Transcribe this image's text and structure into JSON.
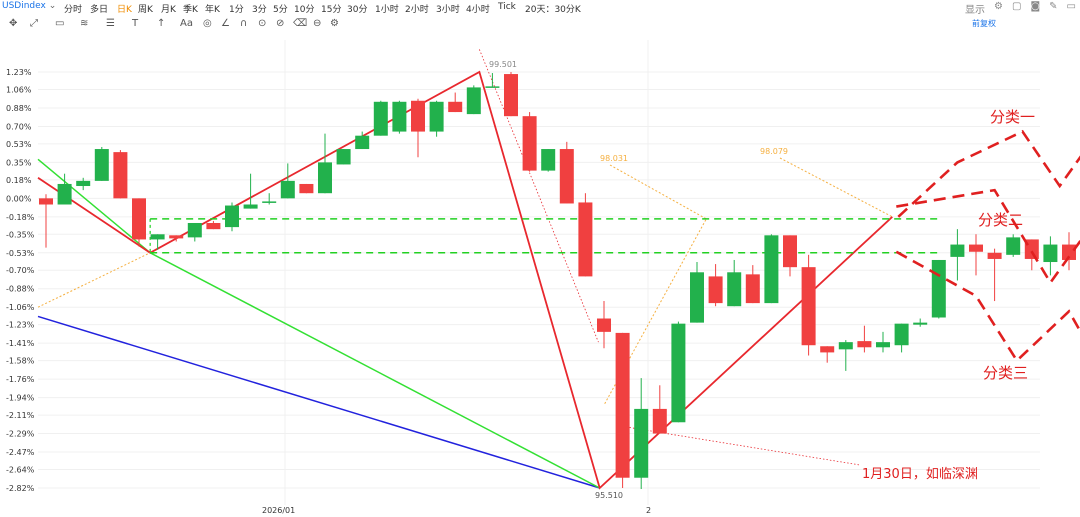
{
  "topbar": {
    "symbol": "USDindex",
    "timeframes": [
      "分时",
      "多日",
      "日K",
      "周K",
      "月K",
      "季K",
      "年K",
      "1分",
      "3分",
      "5分",
      "10分",
      "15分",
      "30分",
      "1小时",
      "2小时",
      "3小时",
      "4小时",
      "Tick",
      "20天：30分K"
    ],
    "active_timeframe": "日K",
    "display_label": "显示"
  },
  "toolbar": {
    "icons": [
      "move-icon",
      "trend-line-icon",
      "rect-icon",
      "fib-icon",
      "list-icon",
      "text-tool-icon",
      "arrow-icon",
      "font-icon",
      "palette-icon",
      "pencil-icon",
      "magnet-icon",
      "lock-icon",
      "eye-icon",
      "trash-icon",
      "link-icon",
      "settings-icon"
    ],
    "fuquan_label": "前复权"
  },
  "chart_data": {
    "type": "candlestick",
    "y_ticks": [
      "1.23%",
      "1.06%",
      "0.88%",
      "0.70%",
      "0.53%",
      "0.35%",
      "0.18%",
      "0.00%",
      "-0.18%",
      "-0.35%",
      "-0.53%",
      "-0.70%",
      "-0.88%",
      "-1.06%",
      "-1.23%",
      "-1.41%",
      "-1.58%",
      "-1.76%",
      "-1.94%",
      "-2.11%",
      "-2.29%",
      "-2.47%",
      "-2.64%",
      "-2.82%"
    ],
    "x_ticks": [
      "2026/01",
      "2"
    ],
    "ylim": [
      -2.9,
      1.3
    ],
    "candles": [
      {
        "o": 0.0,
        "h": 0.04,
        "l": -0.48,
        "c": -0.06
      },
      {
        "o": -0.06,
        "h": 0.24,
        "l": -0.06,
        "c": 0.14
      },
      {
        "o": 0.12,
        "h": 0.2,
        "l": 0.08,
        "c": 0.17
      },
      {
        "o": 0.17,
        "h": 0.5,
        "l": 0.17,
        "c": 0.48
      },
      {
        "o": 0.45,
        "h": 0.47,
        "l": 0.0,
        "c": 0.0
      },
      {
        "o": 0.0,
        "h": 0.0,
        "l": -0.47,
        "c": -0.4
      },
      {
        "o": -0.4,
        "h": -0.35,
        "l": -0.5,
        "c": -0.35
      },
      {
        "o": -0.36,
        "h": -0.36,
        "l": -0.42,
        "c": -0.39
      },
      {
        "o": -0.38,
        "h": -0.24,
        "l": -0.42,
        "c": -0.24
      },
      {
        "o": -0.24,
        "h": -0.22,
        "l": -0.3,
        "c": -0.3
      },
      {
        "o": -0.28,
        "h": -0.04,
        "l": -0.32,
        "c": -0.07
      },
      {
        "o": -0.1,
        "h": 0.24,
        "l": -0.1,
        "c": -0.06
      },
      {
        "o": -0.03,
        "h": 0.05,
        "l": -0.06,
        "c": -0.03
      },
      {
        "o": 0.0,
        "h": 0.34,
        "l": 0.0,
        "c": 0.17
      },
      {
        "o": 0.14,
        "h": 0.14,
        "l": 0.05,
        "c": 0.05
      },
      {
        "o": 0.05,
        "h": 0.63,
        "l": 0.05,
        "c": 0.35
      },
      {
        "o": 0.33,
        "h": 0.48,
        "l": 0.33,
        "c": 0.48
      },
      {
        "o": 0.48,
        "h": 0.65,
        "l": 0.48,
        "c": 0.61
      },
      {
        "o": 0.61,
        "h": 0.95,
        "l": 0.61,
        "c": 0.94
      },
      {
        "o": 0.65,
        "h": 0.95,
        "l": 0.63,
        "c": 0.94
      },
      {
        "o": 0.95,
        "h": 0.97,
        "l": 0.4,
        "c": 0.65
      },
      {
        "o": 0.65,
        "h": 0.95,
        "l": 0.6,
        "c": 0.94
      },
      {
        "o": 0.94,
        "h": 1.03,
        "l": 0.84,
        "c": 0.84
      },
      {
        "o": 0.82,
        "h": 1.1,
        "l": 0.82,
        "c": 1.08
      },
      {
        "o": 1.09,
        "h": 1.22,
        "l": 1.08,
        "c": 1.09
      },
      {
        "o": 1.21,
        "h": 1.23,
        "l": 0.8,
        "c": 0.8
      },
      {
        "o": 0.8,
        "h": 0.84,
        "l": 0.26,
        "c": 0.27
      },
      {
        "o": 0.27,
        "h": 0.48,
        "l": 0.26,
        "c": 0.48
      },
      {
        "o": 0.48,
        "h": 0.55,
        "l": -0.05,
        "c": -0.05
      },
      {
        "o": -0.04,
        "h": 0.05,
        "l": -0.76,
        "c": -0.76
      },
      {
        "o": -1.17,
        "h": -1.0,
        "l": -1.46,
        "c": -1.3
      },
      {
        "o": -1.31,
        "h": -1.31,
        "l": -2.82,
        "c": -2.72
      },
      {
        "o": -2.72,
        "h": -1.75,
        "l": -2.83,
        "c": -2.05
      },
      {
        "o": -2.05,
        "h": -1.82,
        "l": -2.29,
        "c": -2.29
      },
      {
        "o": -2.18,
        "h": -1.2,
        "l": -2.18,
        "c": -1.22
      },
      {
        "o": -1.21,
        "h": -0.62,
        "l": -1.21,
        "c": -0.72
      },
      {
        "o": -0.76,
        "h": -0.64,
        "l": -1.05,
        "c": -1.02
      },
      {
        "o": -1.05,
        "h": -0.6,
        "l": -1.05,
        "c": -0.72
      },
      {
        "o": -0.74,
        "h": -0.65,
        "l": -1.02,
        "c": -1.02
      },
      {
        "o": -1.02,
        "h": -0.35,
        "l": -1.02,
        "c": -0.36
      },
      {
        "o": -0.36,
        "h": -0.36,
        "l": -0.76,
        "c": -0.67
      },
      {
        "o": -0.67,
        "h": -0.55,
        "l": -1.53,
        "c": -1.43
      },
      {
        "o": -1.44,
        "h": -1.44,
        "l": -1.6,
        "c": -1.5
      },
      {
        "o": -1.47,
        "h": -1.38,
        "l": -1.68,
        "c": -1.4
      },
      {
        "o": -1.39,
        "h": -1.24,
        "l": -1.5,
        "c": -1.45
      },
      {
        "o": -1.45,
        "h": -1.3,
        "l": -1.5,
        "c": -1.4
      },
      {
        "o": -1.43,
        "h": -1.22,
        "l": -1.5,
        "c": -1.22
      },
      {
        "o": -1.23,
        "h": -1.17,
        "l": -1.25,
        "c": -1.21
      },
      {
        "o": -1.16,
        "h": -0.6,
        "l": -1.17,
        "c": -0.6
      },
      {
        "o": -0.57,
        "h": -0.3,
        "l": -0.8,
        "c": -0.45
      },
      {
        "o": -0.45,
        "h": -0.35,
        "l": -0.75,
        "c": -0.52
      },
      {
        "o": -0.53,
        "h": -0.49,
        "l": -1.0,
        "c": -0.59
      },
      {
        "o": -0.55,
        "h": -0.35,
        "l": -0.57,
        "c": -0.38
      },
      {
        "o": -0.4,
        "h": -0.4,
        "l": -0.7,
        "c": -0.59
      },
      {
        "o": -0.62,
        "h": -0.37,
        "l": -0.75,
        "c": -0.45
      },
      {
        "o": -0.45,
        "h": -0.33,
        "l": -0.7,
        "c": -0.6
      }
    ],
    "levels": [
      -0.2,
      -0.53
    ],
    "annotations": {
      "high_label": "99.501",
      "low_label": "95.510",
      "label_a": "98.031",
      "label_b": "98.079",
      "cls1": "分类一",
      "cls2": "分类二",
      "cls3": "分类三",
      "note": "1月30日，如临深渊"
    },
    "colors": {
      "up": "#22b14c",
      "down": "#f04040",
      "red_line": "#e8282e",
      "green_line": "#33e033",
      "blue_line": "#2222dd",
      "orange_dot": "#f5b041",
      "dashed_level": "#22d022",
      "scenario": "#e02020"
    }
  }
}
